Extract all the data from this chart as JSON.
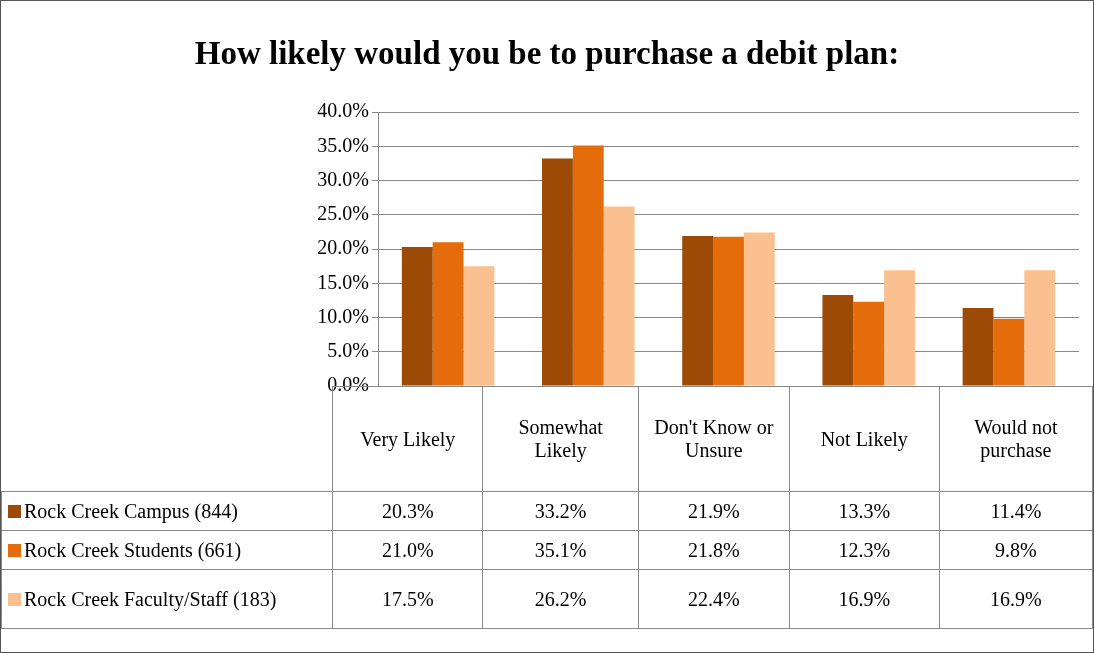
{
  "chart_data": {
    "type": "bar",
    "title": "How likely would you be to purchase a debit plan:",
    "categories": [
      "Very Likely",
      "Somewhat Likely",
      "Don't Know or Unsure",
      "Not Likely",
      "Would not purchase"
    ],
    "series": [
      {
        "name": "Rock Creek Campus (844)",
        "color": "#9c4a06",
        "values": [
          20.3,
          33.2,
          21.9,
          13.3,
          11.4
        ],
        "value_labels": [
          "20.3%",
          "33.2%",
          "21.9%",
          "13.3%",
          "11.4%"
        ]
      },
      {
        "name": "Rock Creek Students (661)",
        "color": "#e46c0a",
        "values": [
          21.0,
          35.1,
          21.8,
          12.3,
          9.8
        ],
        "value_labels": [
          "21.0%",
          "35.1%",
          "21.8%",
          "12.3%",
          "9.8%"
        ]
      },
      {
        "name": "Rock Creek Faculty/Staff (183)",
        "color": "#fac08f",
        "values": [
          17.5,
          26.2,
          22.4,
          16.9,
          16.9
        ],
        "value_labels": [
          "17.5%",
          "26.2%",
          "22.4%",
          "16.9%",
          "16.9%"
        ]
      }
    ],
    "ylim": [
      0,
      40
    ],
    "yticks": [
      {
        "value": 0,
        "label": "0.0%"
      },
      {
        "value": 5,
        "label": "5.0%"
      },
      {
        "value": 10,
        "label": "10.0%"
      },
      {
        "value": 15,
        "label": "15.0%"
      },
      {
        "value": 20,
        "label": "20.0%"
      },
      {
        "value": 25,
        "label": "25.0%"
      },
      {
        "value": 30,
        "label": "30.0%"
      },
      {
        "value": 35,
        "label": "35.0%"
      },
      {
        "value": 40,
        "label": "40.0%"
      }
    ],
    "grid": "y",
    "legend": "bottom"
  }
}
